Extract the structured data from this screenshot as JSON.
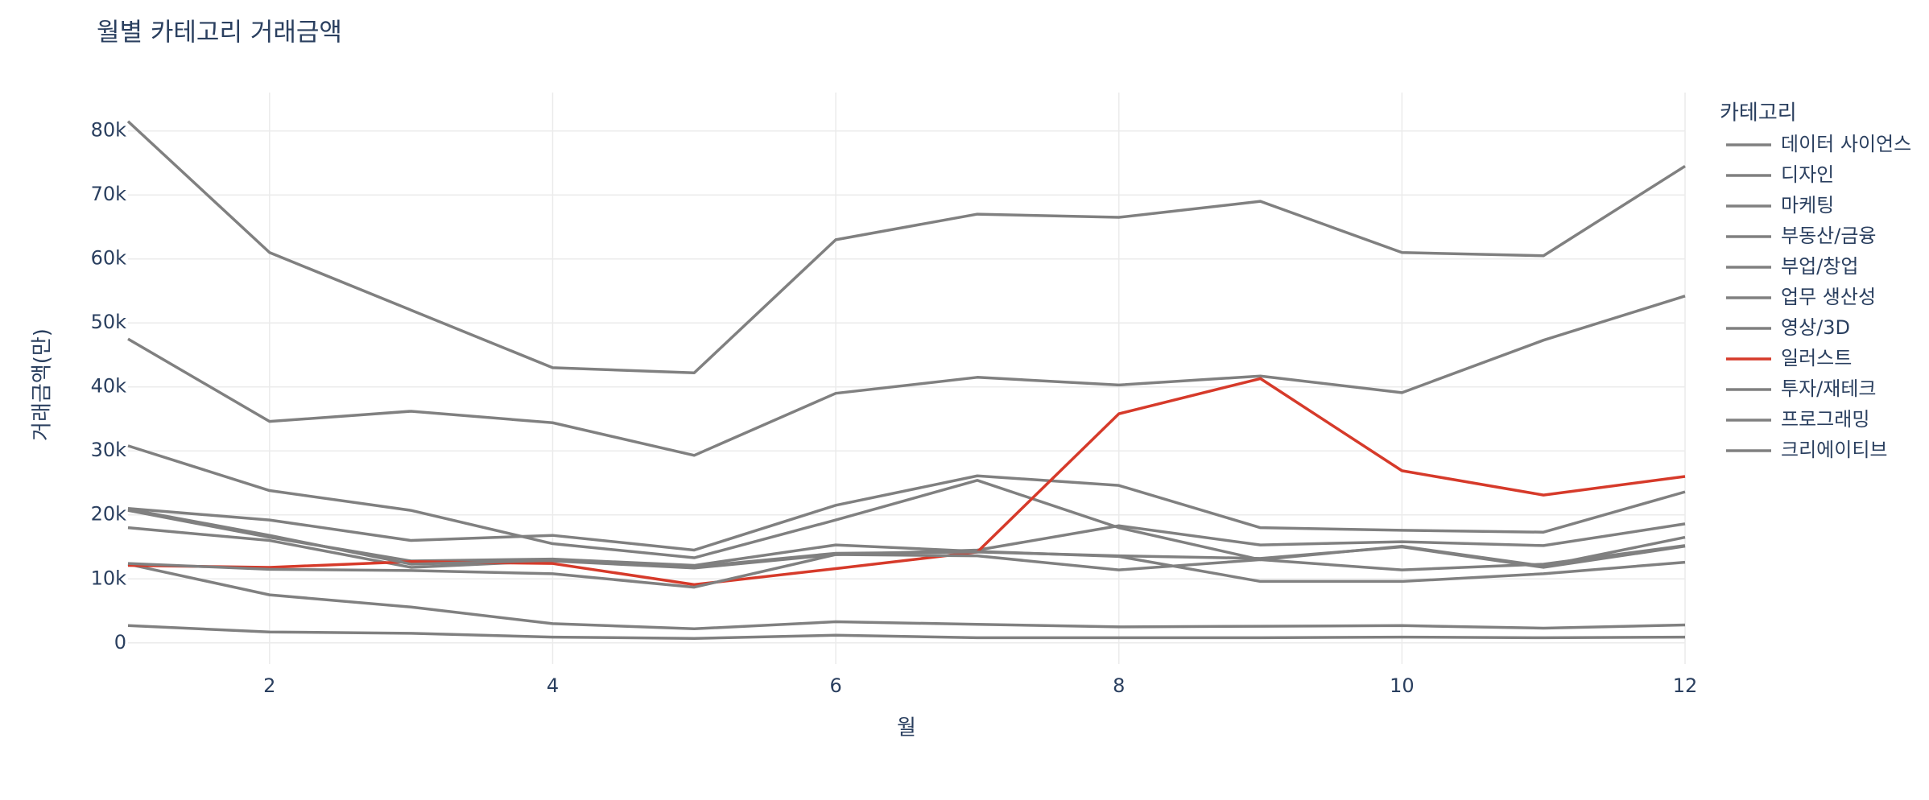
{
  "chart_data": {
    "type": "line",
    "title": "월별 카테고리 거래금액",
    "x_label": "월",
    "y_label": "거래금액(만)",
    "legend_title": "카테고리",
    "legend_position": "right",
    "grid": true,
    "x": [
      1,
      2,
      3,
      4,
      5,
      6,
      7,
      8,
      9,
      10,
      11,
      12
    ],
    "xlim": [
      1,
      12
    ],
    "xticks": [
      2,
      4,
      6,
      8,
      10,
      12
    ],
    "ylim": [
      -3300,
      86000
    ],
    "yticks": [
      0,
      {
        "value": 10000,
        "label": "10k"
      },
      {
        "value": 20000,
        "label": "20k"
      },
      {
        "value": 30000,
        "label": "30k"
      },
      {
        "value": 40000,
        "label": "40k"
      },
      {
        "value": 50000,
        "label": "50k"
      },
      {
        "value": 60000,
        "label": "60k"
      },
      {
        "value": 70000,
        "label": "70k"
      },
      {
        "value": 80000,
        "label": "80k"
      }
    ],
    "series": [
      {
        "name": "데이터 사이언스",
        "color": "#808080",
        "values": [
          20700,
          16500,
          12800,
          13100,
          12100,
          15300,
          14300,
          13500,
          9600,
          9600,
          10800,
          12600
        ]
      },
      {
        "name": "디자인",
        "color": "#808080",
        "values": [
          47500,
          34600,
          36200,
          34400,
          29300,
          39000,
          41500,
          40300,
          41700,
          39100,
          47300,
          54200
        ]
      },
      {
        "name": "마케팅",
        "color": "#808080",
        "values": [
          30800,
          23800,
          20700,
          15500,
          13300,
          19200,
          25400,
          18000,
          13000,
          15100,
          12000,
          16500
        ]
      },
      {
        "name": "부동산/금융",
        "color": "#808080",
        "values": [
          12300,
          7500,
          5600,
          3000,
          2200,
          3300,
          2900,
          2500,
          2600,
          2700,
          2300,
          2800
        ]
      },
      {
        "name": "부업/창업",
        "color": "#808080",
        "values": [
          21000,
          19200,
          16000,
          16800,
          14500,
          21500,
          26100,
          24600,
          18000,
          17600,
          17300,
          23600
        ]
      },
      {
        "name": "업무 생산성",
        "color": "#808080",
        "values": [
          18000,
          16000,
          11800,
          12800,
          11700,
          13800,
          14500,
          18300,
          15300,
          15800,
          15200,
          18600
        ]
      },
      {
        "name": "영상/3D",
        "color": "#808080",
        "values": [
          2700,
          1700,
          1500,
          900,
          700,
          1200,
          800,
          800,
          800,
          900,
          800,
          900
        ]
      },
      {
        "name": "일러스트",
        "color": "#d63a2a",
        "values": [
          12100,
          11800,
          12700,
          12400,
          9100,
          11600,
          14200,
          35800,
          41300,
          26900,
          23100,
          26000
        ]
      },
      {
        "name": "투자/재테크",
        "color": "#808080",
        "values": [
          12400,
          11500,
          11300,
          10800,
          8700,
          13800,
          13600,
          11400,
          13000,
          11400,
          12300,
          15200
        ]
      },
      {
        "name": "프로그래밍",
        "color": "#808080",
        "values": [
          81500,
          61000,
          52000,
          43000,
          42200,
          63000,
          67000,
          66500,
          69000,
          61000,
          60500,
          74500
        ]
      },
      {
        "name": "크리에이티브",
        "color": "#808080",
        "values": [
          20900,
          16800,
          12300,
          12900,
          11900,
          14000,
          14200,
          13600,
          13200,
          15000,
          11800,
          15100
        ]
      }
    ]
  }
}
